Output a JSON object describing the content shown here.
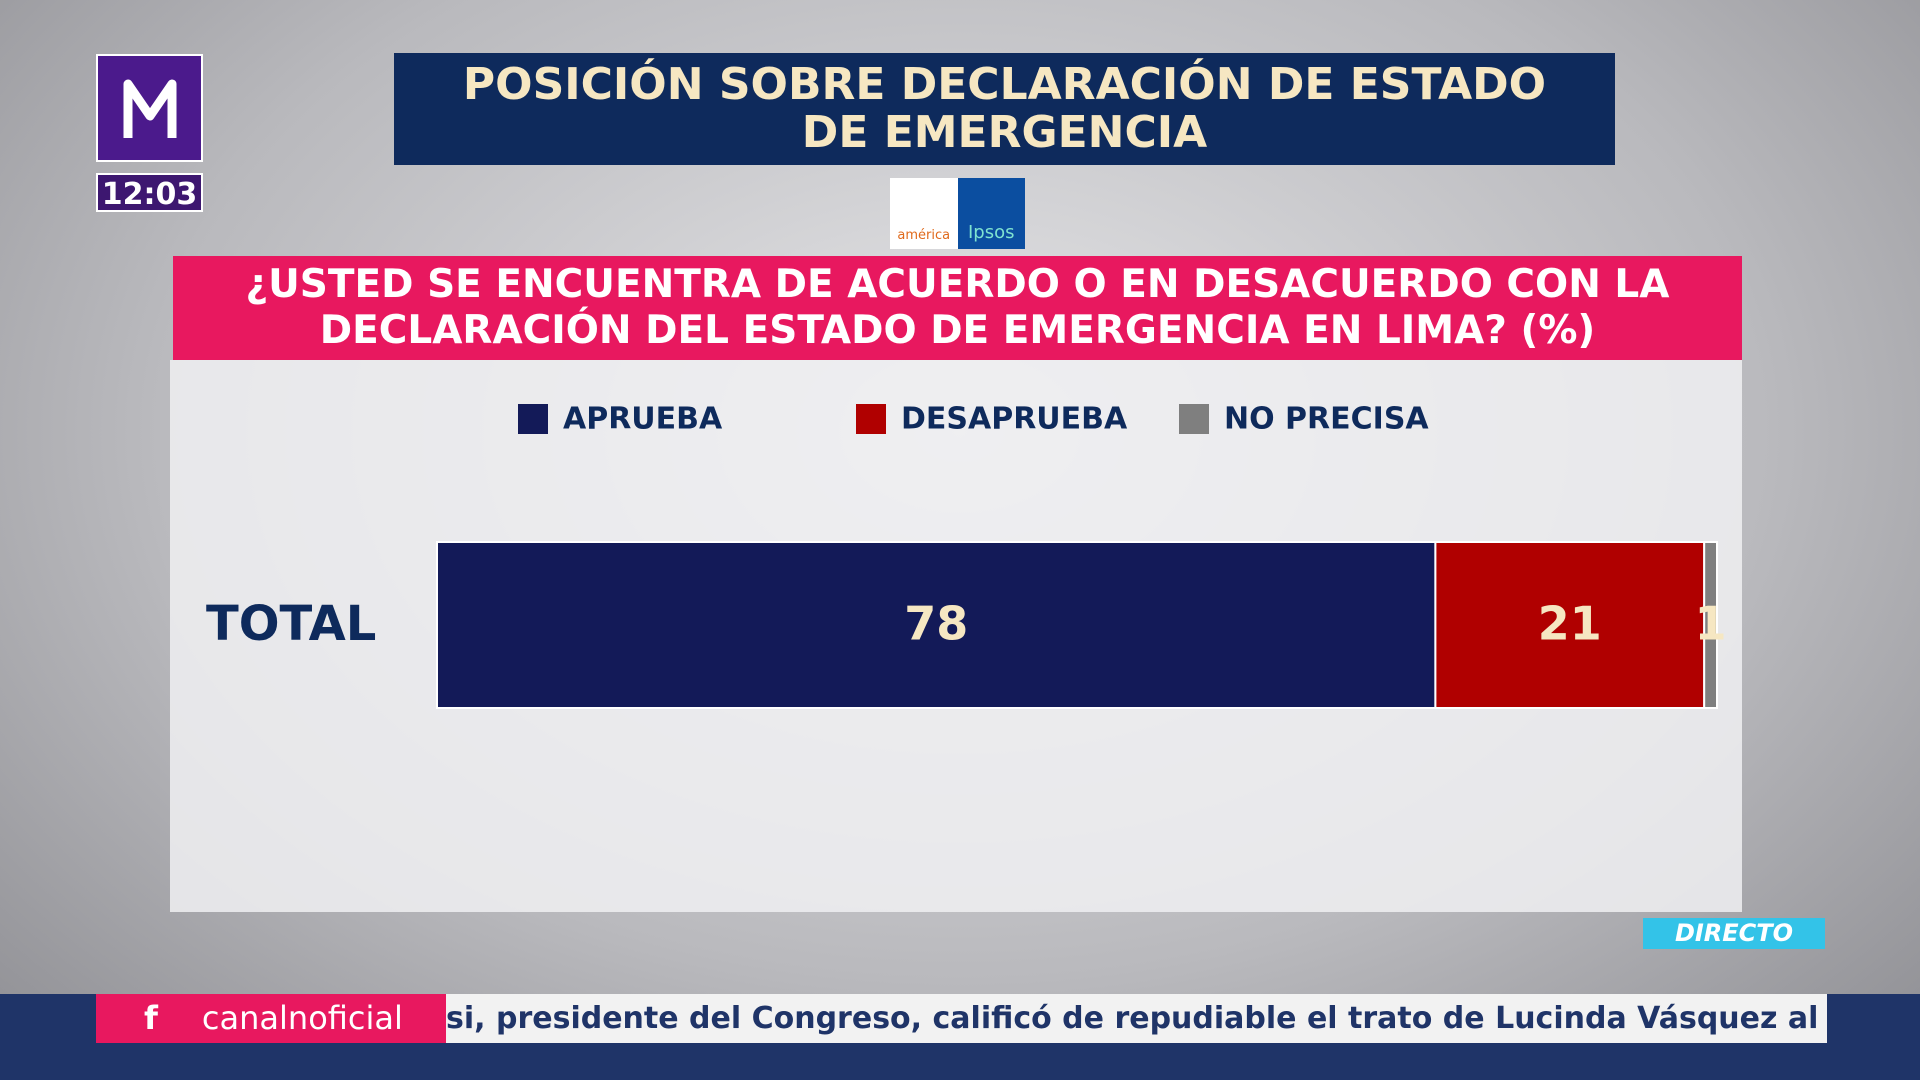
{
  "channel": {
    "clock": "12:03",
    "live_badge": "DIRECTO",
    "sponsors": [
      "américa",
      "Ipsos"
    ]
  },
  "ticker": {
    "social_icon": "f",
    "social_handle": "canalnoficial",
    "headline": "si, presidente del Congreso, calificó de repudiable el trato de Lucinda Vásquez al pers"
  },
  "chart_data": {
    "type": "bar",
    "orientation": "horizontal",
    "stacked": true,
    "title": "POSICIÓN SOBRE DECLARACIÓN DE ESTADO DE EMERGENCIA",
    "subtitle": "¿USTED SE ENCUENTRA DE ACUERDO O EN DESACUERDO CON LA DECLARACIÓN DEL ESTADO DE EMERGENCIA EN LIMA? (%)",
    "categories": [
      "TOTAL"
    ],
    "series": [
      {
        "name": "APRUEBA",
        "color": "#131a58",
        "values": [
          78
        ]
      },
      {
        "name": "DESAPRUEBA",
        "color": "#b00000",
        "values": [
          21
        ]
      },
      {
        "name": "NO PRECISA",
        "color": "#7f7f7f",
        "values": [
          1
        ]
      }
    ],
    "xlim": [
      0,
      100
    ]
  }
}
